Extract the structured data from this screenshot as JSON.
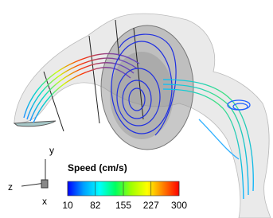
{
  "colorbar": {
    "title": "Speed (cm/s)",
    "lim": [
      10,
      300
    ],
    "ticks": [
      10,
      82,
      155,
      227,
      300
    ],
    "colors": [
      "#0000ff",
      "#00a0ff",
      "#00ffff",
      "#00ff60",
      "#a0ff00",
      "#ffff00",
      "#ff8000",
      "#ff0000"
    ]
  },
  "axes_triad": {
    "y": "y",
    "z": "z",
    "x": "x"
  }
}
